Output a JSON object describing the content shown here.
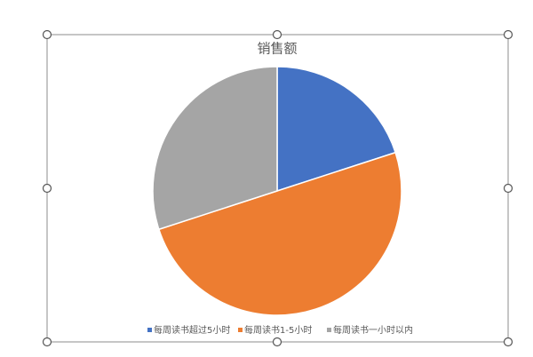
{
  "chart_data": {
    "type": "pie",
    "title": "销售额",
    "categories": [
      "每周读书超过5小时",
      "每周读书1-5小时",
      "每周读书一小时以内"
    ],
    "values": [
      20,
      50,
      30
    ],
    "colors": [
      "#4472c4",
      "#ed7d31",
      "#a5a5a5"
    ],
    "legend": "bottom"
  }
}
